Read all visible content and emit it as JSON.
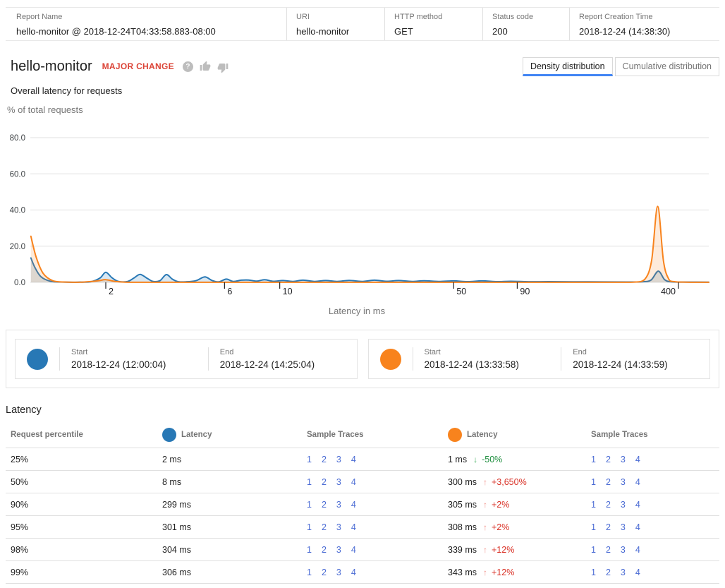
{
  "header": {
    "fields": [
      {
        "label": "Report Name",
        "value": "hello-monitor @ 2018-12-24T04:33:58.883-08:00"
      },
      {
        "label": "URI",
        "value": "hello-monitor"
      },
      {
        "label": "HTTP method",
        "value": "GET"
      },
      {
        "label": "Status code",
        "value": "200"
      },
      {
        "label": "Report Creation Time",
        "value": "2018-12-24 (14:38:30)"
      }
    ]
  },
  "title": {
    "name": "hello-monitor",
    "badge": "MAJOR CHANGE",
    "subtitle": "Overall latency for requests",
    "badge_color": "#db4437"
  },
  "icons": {
    "help": "?",
    "thumb_up": "thumb-up-icon",
    "thumb_down": "thumb-down-icon"
  },
  "tabs": {
    "density": "Density distribution",
    "cumulative": "Cumulative distribution",
    "active": "density",
    "active_underline_color": "#4285f4"
  },
  "chart_data": {
    "type": "area",
    "title": "Overall latency for requests",
    "xlabel": "Latency in ms",
    "ylabel": "% of total requests",
    "x_scale": "log",
    "xticks": [
      2,
      6,
      10,
      50,
      90,
      400
    ],
    "yticks": [
      0.0,
      20.0,
      40.0,
      60.0,
      80.0
    ],
    "ylim": [
      0,
      84
    ],
    "xlim": [
      1,
      530
    ],
    "grid": true,
    "series": [
      {
        "name": "baseline (blue)",
        "color": "#2878b5",
        "fill": "rgba(40,120,181,0.18)",
        "points": [
          [
            1.0,
            13.5
          ],
          [
            1.04,
            8.0
          ],
          [
            1.1,
            3.0
          ],
          [
            1.2,
            0.6
          ],
          [
            1.35,
            0.15
          ],
          [
            1.55,
            0.1
          ],
          [
            1.75,
            0.4
          ],
          [
            1.9,
            2.5
          ],
          [
            2.0,
            5.6
          ],
          [
            2.12,
            2.5
          ],
          [
            2.25,
            0.5
          ],
          [
            2.45,
            0.5
          ],
          [
            2.6,
            2.5
          ],
          [
            2.75,
            4.4
          ],
          [
            2.95,
            2.0
          ],
          [
            3.1,
            0.5
          ],
          [
            3.3,
            0.9
          ],
          [
            3.5,
            4.3
          ],
          [
            3.7,
            1.8
          ],
          [
            3.9,
            0.4
          ],
          [
            4.2,
            0.3
          ],
          [
            4.6,
            0.9
          ],
          [
            5.0,
            3.0
          ],
          [
            5.35,
            1.0
          ],
          [
            5.7,
            0.3
          ],
          [
            6.1,
            1.8
          ],
          [
            6.5,
            0.5
          ],
          [
            7.0,
            1.2
          ],
          [
            7.5,
            1.3
          ],
          [
            8.1,
            0.7
          ],
          [
            8.7,
            1.5
          ],
          [
            9.4,
            0.6
          ],
          [
            10.3,
            1.0
          ],
          [
            11.3,
            0.5
          ],
          [
            12.4,
            1.2
          ],
          [
            13.8,
            0.5
          ],
          [
            15.3,
            1.0
          ],
          [
            17.0,
            0.5
          ],
          [
            19.0,
            1.1
          ],
          [
            21.5,
            0.5
          ],
          [
            24.0,
            1.2
          ],
          [
            27.0,
            0.6
          ],
          [
            30.0,
            1.0
          ],
          [
            34.0,
            0.5
          ],
          [
            38.0,
            0.9
          ],
          [
            44.0,
            0.5
          ],
          [
            50.0,
            0.8
          ],
          [
            57.0,
            0.4
          ],
          [
            65.0,
            0.8
          ],
          [
            75.0,
            0.4
          ],
          [
            85.0,
            0.6
          ],
          [
            100.0,
            0.35
          ],
          [
            120.0,
            0.4
          ],
          [
            150.0,
            0.3
          ],
          [
            200.0,
            0.25
          ],
          [
            250.0,
            0.2
          ],
          [
            285.0,
            0.3
          ],
          [
            310.0,
            1.2
          ],
          [
            332.0,
            6.2
          ],
          [
            352.0,
            1.5
          ],
          [
            375.0,
            0.3
          ],
          [
            430.0,
            0.15
          ],
          [
            530.0,
            0.1
          ]
        ]
      },
      {
        "name": "comparison (orange)",
        "color": "#f8831d",
        "fill": "rgba(248,131,29,0.16)",
        "points": [
          [
            1.0,
            25.5
          ],
          [
            1.05,
            14.0
          ],
          [
            1.12,
            5.0
          ],
          [
            1.22,
            1.0
          ],
          [
            1.35,
            0.2
          ],
          [
            1.6,
            0.1
          ],
          [
            1.85,
            0.8
          ],
          [
            2.0,
            1.5
          ],
          [
            2.18,
            0.5
          ],
          [
            2.4,
            0.1
          ],
          [
            3.0,
            0.05
          ],
          [
            5.0,
            0.05
          ],
          [
            8.0,
            0.05
          ],
          [
            15.0,
            0.05
          ],
          [
            30.0,
            0.05
          ],
          [
            60.0,
            0.05
          ],
          [
            120.0,
            0.05
          ],
          [
            200.0,
            0.05
          ],
          [
            262.0,
            0.1
          ],
          [
            292.0,
            1.5
          ],
          [
            312.0,
            12.0
          ],
          [
            330.0,
            42.0
          ],
          [
            348.0,
            12.0
          ],
          [
            365.0,
            2.0
          ],
          [
            385.0,
            0.4
          ],
          [
            430.0,
            0.1
          ],
          [
            530.0,
            0.05
          ]
        ]
      }
    ]
  },
  "legend": {
    "entries": [
      {
        "color": "#2878b5",
        "start_label": "Start",
        "start_value": "2018-12-24 (12:00:04)",
        "end_label": "End",
        "end_value": "2018-12-24 (14:25:04)"
      },
      {
        "color": "#f8831d",
        "start_label": "Start",
        "start_value": "2018-12-24 (13:33:58)",
        "end_label": "End",
        "end_value": "2018-12-24 (14:33:59)"
      }
    ]
  },
  "table": {
    "section_title": "Latency",
    "columns": {
      "percentile": "Request percentile",
      "latency": "Latency",
      "sample_traces": "Sample Traces"
    },
    "rows": [
      {
        "percentile": "25%",
        "baseline_latency": "2 ms",
        "baseline_traces": [
          "1",
          "2",
          "3",
          "4"
        ],
        "compare_latency": "1 ms",
        "direction": "down",
        "arrow": "↓",
        "delta": "-50%",
        "compare_traces": [
          "1",
          "2",
          "3",
          "4"
        ]
      },
      {
        "percentile": "50%",
        "baseline_latency": "8 ms",
        "baseline_traces": [
          "1",
          "2",
          "3",
          "4"
        ],
        "compare_latency": "300 ms",
        "direction": "up",
        "arrow": "↑",
        "delta": "+3,650%",
        "compare_traces": [
          "1",
          "2",
          "3",
          "4"
        ]
      },
      {
        "percentile": "90%",
        "baseline_latency": "299 ms",
        "baseline_traces": [
          "1",
          "2",
          "3",
          "4"
        ],
        "compare_latency": "305 ms",
        "direction": "up",
        "arrow": "↑",
        "delta": "+2%",
        "compare_traces": [
          "1",
          "2",
          "3",
          "4"
        ]
      },
      {
        "percentile": "95%",
        "baseline_latency": "301 ms",
        "baseline_traces": [
          "1",
          "2",
          "3",
          "4"
        ],
        "compare_latency": "308 ms",
        "direction": "up",
        "arrow": "↑",
        "delta": "+2%",
        "compare_traces": [
          "1",
          "2",
          "3",
          "4"
        ]
      },
      {
        "percentile": "98%",
        "baseline_latency": "304 ms",
        "baseline_traces": [
          "1",
          "2",
          "3",
          "4"
        ],
        "compare_latency": "339 ms",
        "direction": "up",
        "arrow": "↑",
        "delta": "+12%",
        "compare_traces": [
          "1",
          "2",
          "3",
          "4"
        ]
      },
      {
        "percentile": "99%",
        "baseline_latency": "306 ms",
        "baseline_traces": [
          "1",
          "2",
          "3",
          "4"
        ],
        "compare_latency": "343 ms",
        "direction": "up",
        "arrow": "↑",
        "delta": "+12%",
        "compare_traces": [
          "1",
          "2",
          "3",
          "4"
        ]
      }
    ]
  }
}
